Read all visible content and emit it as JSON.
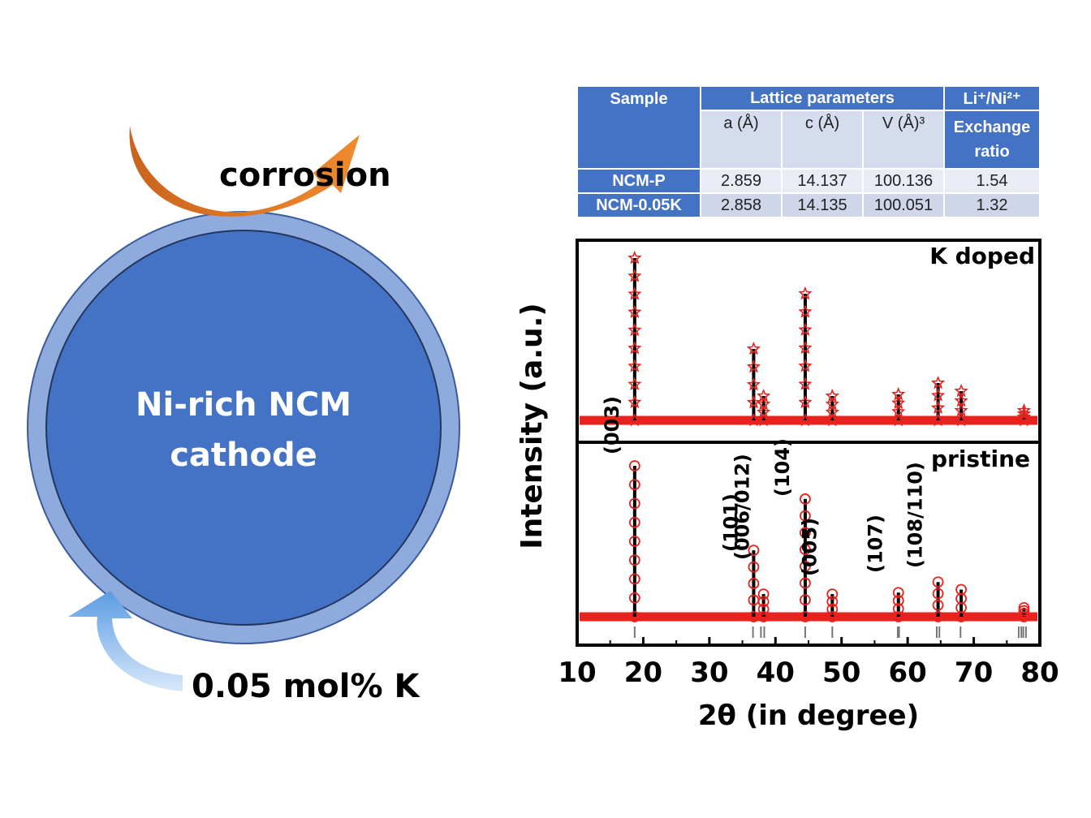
{
  "schematic": {
    "core_line1": "Ni-rich NCM",
    "core_line2": "cathode",
    "corrosion_label": "corrosion",
    "dopant_label": "0.05 mol% K",
    "colors": {
      "core": "#4472c4",
      "shell": "#8faadc",
      "arrow_orange": "#e07b2a",
      "arrow_blue": "#6aa6e8"
    }
  },
  "table": {
    "headers": {
      "sample": "Sample",
      "lattice": "Lattice parameters",
      "exchange_top": "Li⁺/Ni²⁺",
      "exchange_bottom": "Exchange ratio"
    },
    "subheaders": {
      "a": "a (Å)",
      "c": "c (Å)",
      "v": "V (Å)³"
    },
    "rows": [
      {
        "sample": "NCM-P",
        "a": "2.859",
        "c": "14.137",
        "v": "100.136",
        "ratio": "1.54"
      },
      {
        "sample": "NCM-0.05K",
        "a": "2.858",
        "c": "14.135",
        "v": "100.051",
        "ratio": "1.32"
      }
    ]
  },
  "chart_data": {
    "type": "line",
    "xlabel": "2θ (in degree)",
    "ylabel": "Intensity (a.u.)",
    "xlim": [
      10,
      80
    ],
    "xticks": [
      10,
      20,
      30,
      40,
      50,
      60,
      70,
      80
    ],
    "panels": [
      {
        "name": "K doped",
        "marker": "star",
        "peaks": [
          {
            "x": 18.7,
            "y": 100
          },
          {
            "x": 36.7,
            "y": 44
          },
          {
            "x": 38.2,
            "y": 15
          },
          {
            "x": 44.5,
            "y": 78
          },
          {
            "x": 48.6,
            "y": 15
          },
          {
            "x": 58.6,
            "y": 16
          },
          {
            "x": 64.6,
            "y": 23
          },
          {
            "x": 68.1,
            "y": 18
          },
          {
            "x": 77.6,
            "y": 6
          }
        ]
      },
      {
        "name": "pristine",
        "marker": "circle",
        "peaks": [
          {
            "x": 18.7,
            "y": 100
          },
          {
            "x": 36.7,
            "y": 44
          },
          {
            "x": 38.2,
            "y": 15
          },
          {
            "x": 44.5,
            "y": 78
          },
          {
            "x": 48.6,
            "y": 15
          },
          {
            "x": 58.6,
            "y": 16
          },
          {
            "x": 64.6,
            "y": 23
          },
          {
            "x": 68.1,
            "y": 18
          },
          {
            "x": 77.6,
            "y": 6
          }
        ],
        "annotations": [
          {
            "x": 18.7,
            "text": "(003)"
          },
          {
            "x": 36.7,
            "text": "(101)"
          },
          {
            "x": 38.4,
            "text": "(006/012)"
          },
          {
            "x": 44.5,
            "text": "(104)"
          },
          {
            "x": 48.6,
            "text": "(005)"
          },
          {
            "x": 58.6,
            "text": "(107)"
          },
          {
            "x": 64.6,
            "text": "(108/110)"
          }
        ]
      }
    ],
    "reference_ticks": [
      18.7,
      36.6,
      37.8,
      38.3,
      44.5,
      48.6,
      58.5,
      58.7,
      64.4,
      64.8,
      68.0,
      76.8,
      77.2,
      77.5,
      77.9
    ]
  }
}
